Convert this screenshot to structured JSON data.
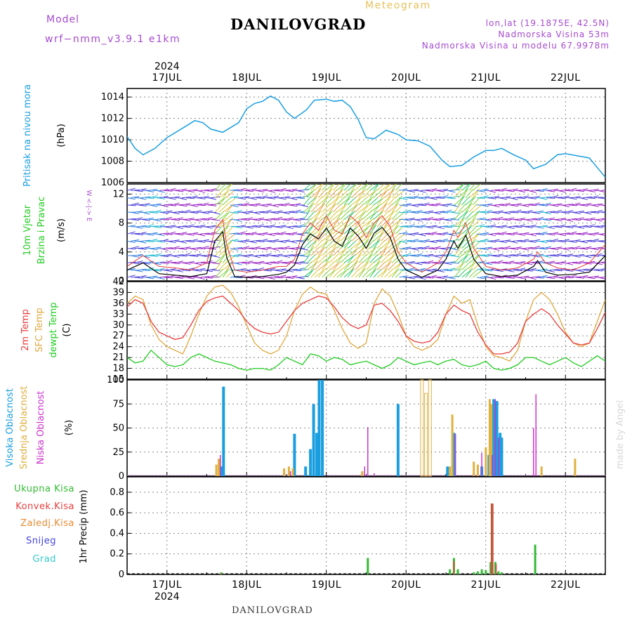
{
  "header": {
    "model_label": "Model",
    "model_name": "wrf−nmm_v3.9.1  e1km",
    "title": "DANILOVGRAD",
    "meteogram": "Meteogram",
    "lonlat": "lon,lat (19.1875E, 42.5N)",
    "altitude": "Nadmorska Visina 53m",
    "model_altitude": "Nadmorska Visina u modelu 67.9978m",
    "bottom_title": "DANILOVGRAD",
    "credit": "made by Angel"
  },
  "colors": {
    "pressure": "#1a9ee0",
    "temp2m": "#e83c3c",
    "sfc_temp": "#e0a840",
    "dewpt": "#22cc22",
    "high_cloud": "#1a9ee0",
    "mid_cloud": "#e0b040",
    "low_cloud": "#cc33cc",
    "total_precip": "#33bb33",
    "convective": "#e83c3c",
    "freezing": "#e88a30",
    "snow": "#4444dd",
    "grad": "#33cccc",
    "purple": "#a64ad0",
    "wind_speed_line": "#000000",
    "gust": "#e83c3c"
  },
  "chart_data": [
    {
      "type": "line",
      "panel": "pressure",
      "ylabel_main": "Pritisak na nivou mora",
      "ylabel_unit": "(hPa)",
      "ylim": [
        1006,
        1014.8
      ],
      "yticks": [
        1006,
        1008,
        1010,
        1012,
        1014
      ],
      "x": [
        16.5,
        16.6,
        16.7,
        16.85,
        17.0,
        17.2,
        17.35,
        17.45,
        17.55,
        17.7,
        17.9,
        18.0,
        18.1,
        18.2,
        18.3,
        18.4,
        18.5,
        18.6,
        18.75,
        18.85,
        19.0,
        19.1,
        19.2,
        19.3,
        19.4,
        19.5,
        19.6,
        19.75,
        19.9,
        20.0,
        20.15,
        20.3,
        20.45,
        20.55,
        20.7,
        20.85,
        21.0,
        21.1,
        21.2,
        21.35,
        21.5,
        21.6,
        21.75,
        21.9,
        22.0,
        22.15,
        22.3,
        22.4,
        22.5
      ],
      "values": [
        1010.3,
        1009.2,
        1008.6,
        1009.2,
        1010.2,
        1011.1,
        1011.8,
        1011.6,
        1011.0,
        1010.7,
        1011.6,
        1012.9,
        1013.4,
        1013.6,
        1014.1,
        1013.7,
        1012.6,
        1012.0,
        1012.8,
        1013.7,
        1013.8,
        1013.6,
        1013.7,
        1013.1,
        1011.9,
        1010.2,
        1010.1,
        1010.9,
        1010.5,
        1010.0,
        1009.9,
        1009.4,
        1008.1,
        1007.5,
        1007.6,
        1008.4,
        1009.0,
        1009.0,
        1009.2,
        1008.6,
        1008.1,
        1007.3,
        1007.7,
        1008.6,
        1008.7,
        1008.5,
        1008.3,
        1007.4,
        1006.5
      ]
    },
    {
      "type": "line",
      "panel": "wind",
      "ylabel_main": "10m Vjetar",
      "ylabel_sub": "Brzina i Pravac",
      "ylabel_unit": "(m/s)",
      "compass": "W  <-|->  E",
      "ylim": [
        0,
        13.4
      ],
      "yticks": [
        0,
        4,
        8,
        12
      ],
      "x": [
        16.5,
        16.7,
        16.9,
        17.1,
        17.3,
        17.5,
        17.6,
        17.7,
        17.75,
        17.85,
        18.0,
        18.2,
        18.4,
        18.5,
        18.6,
        18.7,
        18.8,
        18.9,
        19.0,
        19.1,
        19.2,
        19.3,
        19.4,
        19.5,
        19.6,
        19.7,
        19.8,
        19.9,
        20.0,
        20.2,
        20.4,
        20.5,
        20.6,
        20.65,
        20.75,
        20.85,
        21.0,
        21.2,
        21.4,
        21.6,
        21.65,
        21.75,
        21.9,
        22.1,
        22.3,
        22.5
      ],
      "series": [
        {
          "name": "",
          "values": [
            1.5,
            2.5,
            1.0,
            0.8,
            0.6,
            1.0,
            5.5,
            6.8,
            3.2,
            0.6,
            0.5,
            0.6,
            0.9,
            1.2,
            2.2,
            5.0,
            6.5,
            5.8,
            7.3,
            5.5,
            4.8,
            7.3,
            6.2,
            4.5,
            6.6,
            7.4,
            6.0,
            3.0,
            1.5,
            0.5,
            1.5,
            3.0,
            5.5,
            4.5,
            6.3,
            3.0,
            1.0,
            0.6,
            0.8,
            2.0,
            2.8,
            1.2,
            0.8,
            0.9,
            1.2,
            3.5
          ]
        },
        {
          "name": "",
          "values": [
            2.0,
            3.5,
            2.0,
            1.8,
            1.5,
            2.5,
            7.0,
            8.5,
            5.0,
            1.5,
            1.2,
            1.5,
            2.0,
            2.0,
            3.0,
            6.5,
            8.0,
            7.0,
            9.0,
            7.0,
            6.5,
            9.0,
            8.0,
            6.0,
            8.0,
            9.0,
            7.5,
            4.0,
            2.5,
            1.2,
            2.5,
            4.0,
            7.0,
            6.0,
            8.0,
            4.5,
            2.0,
            1.5,
            1.8,
            3.0,
            4.0,
            2.5,
            1.8,
            1.5,
            2.5,
            5.0
          ]
        }
      ],
      "barb_rows": [
        0.5,
        1.5,
        2.5,
        3.5,
        4.5,
        5.5,
        6.5,
        7.5,
        8.5,
        9.5,
        10.5,
        11.5,
        12.5
      ]
    },
    {
      "type": "line",
      "panel": "temperature",
      "ylabel_parts": [
        "2m Temp",
        "SFC Temp",
        "dewpt Temp"
      ],
      "ylabel_unit": "(C)",
      "ylim": [
        15,
        42
      ],
      "yticks": [
        15,
        18,
        21,
        24,
        27,
        30,
        33,
        36,
        39,
        42
      ],
      "x": [
        16.5,
        16.6,
        16.7,
        16.8,
        16.9,
        17.0,
        17.1,
        17.2,
        17.3,
        17.4,
        17.5,
        17.6,
        17.7,
        17.8,
        17.9,
        18.0,
        18.1,
        18.2,
        18.3,
        18.4,
        18.5,
        18.6,
        18.7,
        18.8,
        18.9,
        19.0,
        19.1,
        19.2,
        19.3,
        19.4,
        19.5,
        19.6,
        19.7,
        19.8,
        19.9,
        20.0,
        20.1,
        20.2,
        20.3,
        20.4,
        20.5,
        20.6,
        20.7,
        20.8,
        20.9,
        21.0,
        21.1,
        21.2,
        21.3,
        21.4,
        21.5,
        21.6,
        21.7,
        21.8,
        21.9,
        22.0,
        22.1,
        22.2,
        22.3,
        22.4,
        22.5
      ],
      "series": [
        {
          "name": "2m Temp",
          "values": [
            35,
            37,
            36,
            31,
            28,
            27,
            26,
            26.5,
            30,
            34,
            36.5,
            37.5,
            38,
            36,
            34,
            31,
            29,
            28,
            27.5,
            28,
            31,
            34,
            36,
            37,
            38,
            37.5,
            35,
            32,
            30,
            29,
            30,
            35.5,
            36,
            34,
            31,
            27,
            25.5,
            25,
            25.5,
            28,
            33,
            35.5,
            34,
            33,
            28,
            24.5,
            22,
            22,
            22.5,
            25,
            31,
            33,
            34.5,
            33,
            30,
            27.5,
            25,
            24.5,
            25,
            29,
            33.5
          ]
        },
        {
          "name": "SFC Temp",
          "values": [
            36,
            38,
            37,
            30,
            26,
            24,
            23,
            22,
            27,
            33,
            38,
            40.5,
            41,
            39,
            35,
            30,
            25,
            23,
            22,
            23,
            27,
            34,
            38.5,
            40.5,
            39,
            38.5,
            34,
            29,
            25,
            23.5,
            25,
            36,
            40,
            38,
            33,
            27,
            24,
            23,
            24,
            26,
            33,
            38,
            36,
            37,
            30,
            24,
            21.5,
            21,
            20,
            23,
            31,
            37,
            39,
            37,
            33,
            28,
            25,
            24,
            25,
            31,
            37
          ]
        },
        {
          "name": "dewpt Temp",
          "values": [
            21,
            19.5,
            20,
            23,
            21,
            19,
            18.5,
            19,
            21,
            22,
            21,
            20,
            19.5,
            19,
            18,
            17.5,
            18,
            18,
            17.5,
            19,
            21,
            20,
            19,
            22,
            21.5,
            20,
            21,
            20.5,
            19,
            19.5,
            20,
            19,
            18,
            19,
            21,
            20,
            19,
            19.5,
            20,
            19,
            20,
            20.5,
            19,
            18.5,
            19,
            20,
            18,
            17.5,
            18,
            19,
            21,
            21,
            20,
            19,
            20,
            21,
            19.5,
            18.5,
            20,
            21.5,
            20
          ]
        }
      ]
    },
    {
      "type": "bar",
      "panel": "clouds",
      "ylabel_parts": [
        "Visoka Oblacnost",
        "Srednja Oblacnost",
        "Niska Oblacnost"
      ],
      "ylabel_unit": "(%)",
      "ylim": [
        0,
        100
      ],
      "yticks": [
        0,
        25,
        50,
        75,
        100
      ],
      "series": [
        {
          "name": "Visoka Oblacnost",
          "x": [
            17.68,
            17.71,
            18.6,
            18.74,
            18.8,
            18.84,
            18.88,
            18.91,
            18.95,
            19.9,
            20.52,
            20.6,
            20.95,
            21.04,
            21.1,
            21.14,
            21.18,
            21.2
          ],
          "values": [
            10,
            93,
            44,
            10,
            28,
            75,
            45,
            100,
            100,
            75,
            10,
            45,
            10,
            22,
            80,
            78,
            45,
            40
          ]
        },
        {
          "name": "Srednja Oblacnost",
          "x": [
            17.62,
            17.65,
            18.47,
            18.53,
            18.58,
            19.45,
            20.2,
            20.25,
            20.3,
            20.55,
            20.58,
            20.85,
            20.9,
            21.0,
            21.05,
            21.07,
            21.7,
            22.12
          ],
          "values": [
            12,
            18,
            8,
            10,
            8,
            5,
            100,
            86,
            100,
            10,
            64,
            15,
            12,
            30,
            80,
            75,
            10,
            18
          ]
        },
        {
          "name": "Niska Oblacnost",
          "x": [
            17.67,
            18.55,
            19.48,
            19.52,
            19.6,
            20.62,
            20.95,
            21.08,
            21.12,
            21.16,
            21.6,
            21.63
          ],
          "values": [
            22,
            5,
            10,
            51,
            3,
            44,
            24,
            22,
            80,
            40,
            50,
            85
          ]
        }
      ]
    },
    {
      "type": "bar",
      "panel": "precip",
      "ylabel_parts": [
        "Ukupna Kisa",
        "Konvek.Kisa",
        "Zaledj.Kisa",
        "Snijeg",
        "Grad"
      ],
      "ylabel_unit": "1hr Precip (mm)",
      "ylim": [
        0,
        0.95
      ],
      "yticks": [
        0,
        0.2,
        0.4,
        0.6,
        0.8
      ],
      "series": [
        {
          "name": "Ukupna Kisa",
          "x": [
            17.68,
            19.52,
            20.55,
            20.6,
            20.65,
            20.85,
            20.9,
            20.95,
            21.0,
            21.06,
            21.08,
            21.12,
            21.16,
            21.2,
            21.62
          ],
          "values": [
            0.02,
            0.16,
            0.05,
            0.16,
            0.05,
            0.02,
            0.03,
            0.05,
            0.04,
            0.12,
            0.69,
            0.12,
            0.03,
            0.02,
            0.29
          ]
        },
        {
          "name": "Konvek.Kisa",
          "x": [
            17.67,
            20.6,
            21.07,
            21.09,
            21.13
          ],
          "values": [
            0.01,
            0.13,
            0.69,
            0.69,
            0.1
          ]
        }
      ]
    }
  ],
  "x_axis": {
    "year": "2024",
    "day_ticks": [
      17,
      18,
      19,
      20,
      21,
      22
    ],
    "day_labels": [
      "17JUL",
      "18JUL",
      "19JUL",
      "20JUL",
      "21JUL",
      "22JUL"
    ],
    "xlim": [
      16.5,
      22.5
    ]
  }
}
